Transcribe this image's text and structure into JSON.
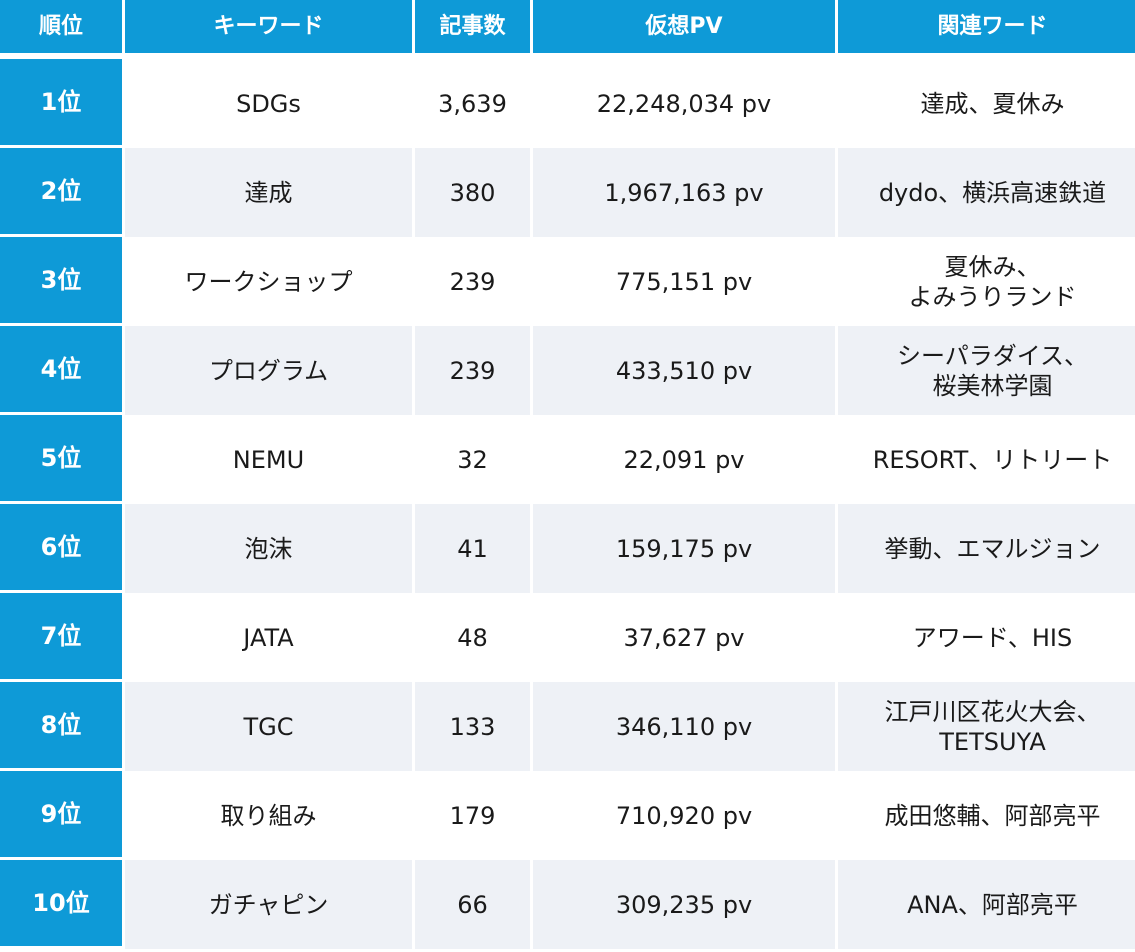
{
  "headers": [
    "順位",
    "キーワード",
    "記事数",
    "仮想PV",
    "関連ワード"
  ],
  "rows": [
    {
      "rank": "1位",
      "keyword": "SDGs",
      "articles": "3,639",
      "pv": "22,248,034 pv",
      "related": "達成、夏休み"
    },
    {
      "rank": "2位",
      "keyword": "達成",
      "articles": "380",
      "pv": "1,967,163 pv",
      "related": "dydo、横浜高速鉄道"
    },
    {
      "rank": "3位",
      "keyword": "ワークショップ",
      "articles": "239",
      "pv": "775,151 pv",
      "related": "夏休み、\nよみうりランド"
    },
    {
      "rank": "4位",
      "keyword": "プログラム",
      "articles": "239",
      "pv": "433,510 pv",
      "related": "シーパラダイス、\n桜美林学園"
    },
    {
      "rank": "5位",
      "keyword": "NEMU",
      "articles": "32",
      "pv": "22,091 pv",
      "related": "RESORT、リトリート"
    },
    {
      "rank": "6位",
      "keyword": "泡沫",
      "articles": "41",
      "pv": "159,175 pv",
      "related": "挙動、エマルジョン"
    },
    {
      "rank": "7位",
      "keyword": "JATA",
      "articles": "48",
      "pv": "37,627 pv",
      "related": "アワード、HIS"
    },
    {
      "rank": "8位",
      "keyword": "TGC",
      "articles": "133",
      "pv": "346,110 pv",
      "related": "江戸川区花火大会、\nTETSUYA"
    },
    {
      "rank": "9位",
      "keyword": "取り組み",
      "articles": "179",
      "pv": "710,920 pv",
      "related": "成田悠輔、阿部亮平"
    },
    {
      "rank": "10位",
      "keyword": "ガチャピン",
      "articles": "66",
      "pv": "309,235 pv",
      "related": "ANA、阿部亮平"
    }
  ]
}
